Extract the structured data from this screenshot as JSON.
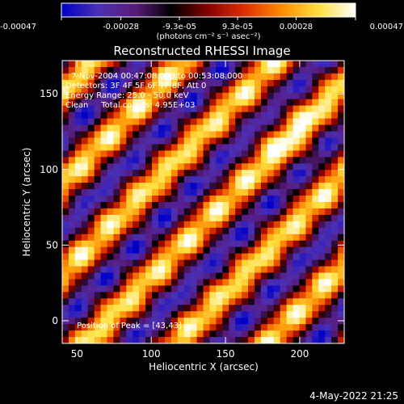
{
  "colorbar": {
    "tick_labels": [
      "-0.00047",
      "-0.00028",
      "-9.3e-05",
      "9.3e-05",
      "0.00028",
      "0.00047"
    ],
    "tick_values": [
      -0.00047,
      -0.00028,
      -9.3e-05,
      9.3e-05,
      0.00028,
      0.00047
    ],
    "range": [
      -0.00047,
      0.00047
    ],
    "units_label": "(photons cm⁻² s⁻¹ asec⁻²)",
    "colormap": [
      "#0000c8",
      "#4a30b4",
      "#5a1a7a",
      "#000000",
      "#8a0000",
      "#e03000",
      "#ff8c00",
      "#ffe040",
      "#ffffff"
    ]
  },
  "chart_data": {
    "type": "heatmap",
    "title": "Reconstructed RHESSI Image",
    "xlabel": "Heliocentric X (arcsec)",
    "ylabel": "Heliocentric Y (arcsec)",
    "xlim": [
      40,
      230
    ],
    "ylim": [
      -15,
      172
    ],
    "x_ticks": [
      50,
      100,
      150,
      200
    ],
    "x_tick_labels": [
      "50",
      "100",
      "150",
      "200"
    ],
    "y_ticks": [
      0,
      50,
      100,
      150
    ],
    "y_tick_labels": [
      "0",
      "50",
      "100",
      "150"
    ],
    "pattern": "diagonal fringe bands, low-left to high-right, peak near (43,43)",
    "annotations": [
      "7-Nov-2004 00:47:08.000 to 00:53:08.000",
      "Detectors: 3F 4F 5F 6F 7F 8F, Att 0",
      "Energy Range: 25.0 - 50.0 keV",
      "Clean     Total counts: 4.95E+03",
      "Position of Peak = [43,43]"
    ]
  },
  "footer": {
    "date": "4-May-2022 21:25"
  }
}
